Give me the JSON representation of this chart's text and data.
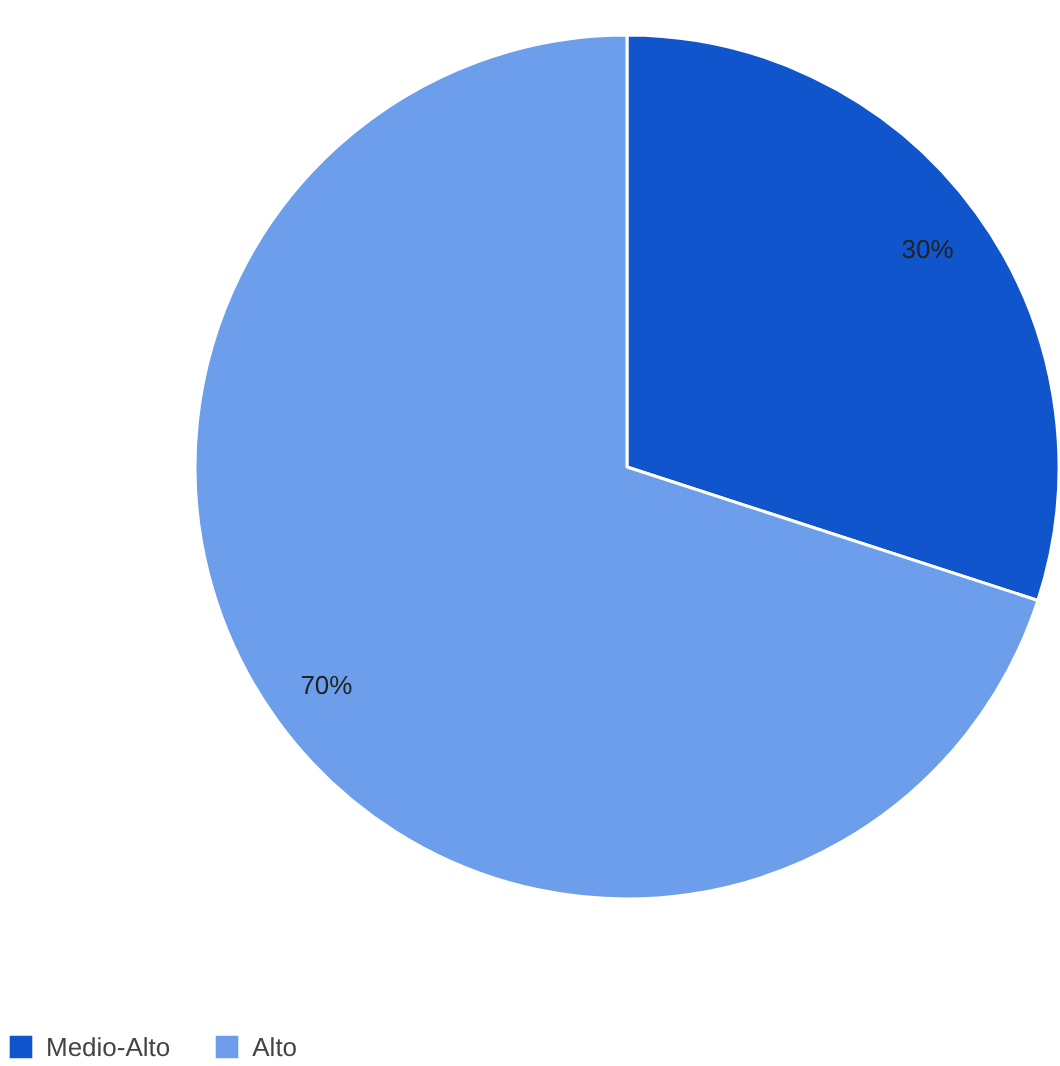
{
  "chart_data": {
    "type": "pie",
    "categories": [
      "Medio-Alto",
      "Alto"
    ],
    "values": [
      30,
      70
    ],
    "colors": [
      "#1155cc",
      "#6d9eeb"
    ],
    "value_labels": [
      "30%",
      "70%"
    ],
    "legend": "bottom left"
  }
}
